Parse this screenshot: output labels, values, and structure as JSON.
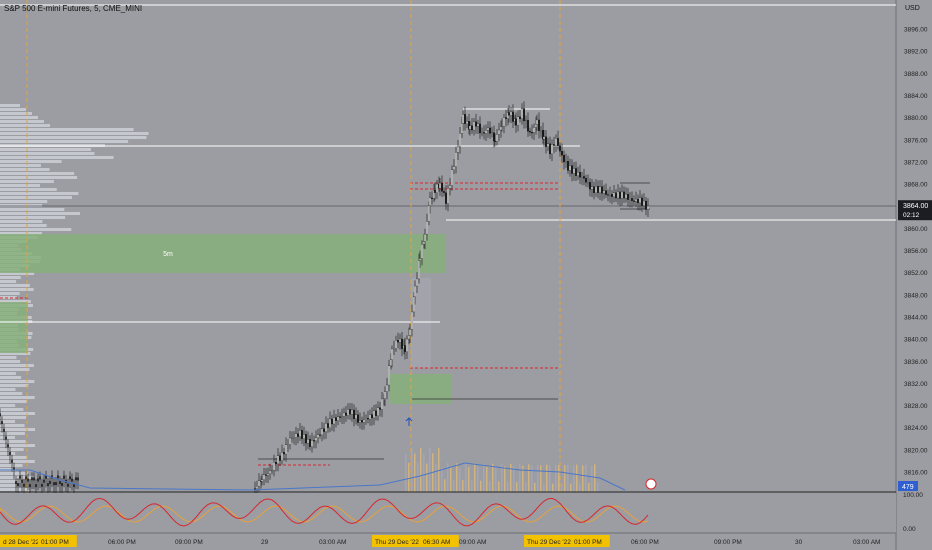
{
  "header": {
    "title": "S&P 500 E-mini Futures, 5, CME_MINI",
    "currency": "USD"
  },
  "chart_data": {
    "type": "candlestick",
    "y_ticks": [
      "3896.00",
      "3892.00",
      "3888.00",
      "3884.00",
      "3880.00",
      "3876.00",
      "3872.00",
      "3868.00",
      "3864.00",
      "3860.00",
      "3856.00",
      "3852.00",
      "3848.00",
      "3844.00",
      "3840.00",
      "3836.00",
      "3832.00",
      "3828.00",
      "3824.00",
      "3820.00",
      "3816.00"
    ],
    "ylim": [
      3812,
      3898
    ],
    "last_price": {
      "value": "3864.00",
      "countdown": "02:12"
    },
    "zone_label": "5m",
    "volume_badge": "479",
    "osc_ticks": [
      "100.00",
      "0.00"
    ],
    "x_ticks": [
      {
        "label": "d 28 Dec '22",
        "highlight": true
      },
      {
        "label": "01:00 PM",
        "highlight": true
      },
      {
        "label": "06:00 PM",
        "highlight": false
      },
      {
        "label": "09:00 PM",
        "highlight": false
      },
      {
        "label": "29",
        "highlight": false
      },
      {
        "label": "03:00 AM",
        "highlight": false
      },
      {
        "label": "Thu 29 Dec '22",
        "highlight": true
      },
      {
        "label": "06:30 AM",
        "highlight": true
      },
      {
        "label": "09:00 AM",
        "highlight": false
      },
      {
        "label": "Thu 29 Dec '22",
        "highlight": true
      },
      {
        "label": "01:00 PM",
        "highlight": true
      },
      {
        "label": "06:00 PM",
        "highlight": false
      },
      {
        "label": "09:00 PM",
        "highlight": false
      },
      {
        "label": "30",
        "highlight": false
      },
      {
        "label": "03:00 AM",
        "highlight": false
      }
    ],
    "price_path": [
      [
        255,
        3813
      ],
      [
        262,
        3815
      ],
      [
        270,
        3816
      ],
      [
        276,
        3818
      ],
      [
        282,
        3819
      ],
      [
        290,
        3822
      ],
      [
        300,
        3823
      ],
      [
        310,
        3821
      ],
      [
        320,
        3823
      ],
      [
        330,
        3825
      ],
      [
        340,
        3826
      ],
      [
        350,
        3827
      ],
      [
        360,
        3825
      ],
      [
        370,
        3826
      ],
      [
        378,
        3827
      ],
      [
        385,
        3830
      ],
      [
        392,
        3838
      ],
      [
        398,
        3840
      ],
      [
        405,
        3838
      ],
      [
        410,
        3842
      ],
      [
        415,
        3849
      ],
      [
        420,
        3855
      ],
      [
        425,
        3859
      ],
      [
        430,
        3865
      ],
      [
        435,
        3867
      ],
      [
        440,
        3868
      ],
      [
        446,
        3865
      ],
      [
        452,
        3870
      ],
      [
        458,
        3875
      ],
      [
        463,
        3880
      ],
      [
        470,
        3878
      ],
      [
        476,
        3879
      ],
      [
        482,
        3877
      ],
      [
        488,
        3878
      ],
      [
        495,
        3876
      ],
      [
        502,
        3879
      ],
      [
        509,
        3881
      ],
      [
        516,
        3879
      ],
      [
        522,
        3881
      ],
      [
        530,
        3877
      ],
      [
        537,
        3879
      ],
      [
        544,
        3876
      ],
      [
        550,
        3874
      ],
      [
        556,
        3876
      ],
      [
        562,
        3873
      ],
      [
        568,
        3871
      ],
      [
        576,
        3870
      ],
      [
        584,
        3869
      ],
      [
        592,
        3867
      ],
      [
        600,
        3867
      ],
      [
        608,
        3866
      ],
      [
        616,
        3866
      ],
      [
        624,
        3866
      ],
      [
        632,
        3865
      ],
      [
        640,
        3865
      ],
      [
        646,
        3864
      ],
      [
        650,
        3863
      ]
    ]
  }
}
